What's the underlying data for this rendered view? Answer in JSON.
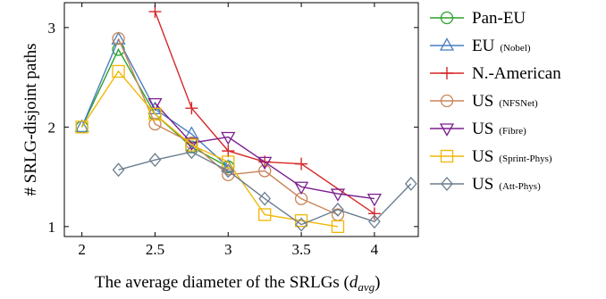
{
  "chart_data": {
    "type": "line",
    "title": "",
    "xlabel_text": "The average diameter of the SRLGs (",
    "xlabel_math": "d",
    "xlabel_sub": "avg",
    "xlabel_close": ")",
    "ylabel": "# SRLG-disjoint paths",
    "xlim": [
      1.88,
      4.3
    ],
    "ylim": [
      0.9,
      3.25
    ],
    "xticks": [
      2,
      2.5,
      3,
      3.5,
      4
    ],
    "xtick_labels": [
      "2",
      "2.5",
      "3",
      "3.5",
      "4"
    ],
    "yticks": [
      1,
      2,
      3
    ],
    "ytick_labels": [
      "1",
      "2",
      "3"
    ],
    "grid": false,
    "legend_position": "outside-right",
    "series": [
      {
        "name": "Pan-EU",
        "name_sub": "",
        "color": "#2ca02c",
        "marker": "circle",
        "points": [
          [
            2.0,
            2.0
          ],
          [
            2.25,
            2.78
          ],
          [
            2.5,
            2.13
          ],
          [
            2.75,
            1.8
          ],
          [
            3.0,
            1.6
          ]
        ]
      },
      {
        "name": "EU",
        "name_sub": "(Nobel)",
        "color": "#4a7fc0",
        "marker": "triangle-up",
        "points": [
          [
            2.0,
            2.0
          ],
          [
            2.25,
            2.88
          ],
          [
            2.5,
            2.18
          ],
          [
            2.75,
            1.93
          ],
          [
            3.0,
            1.6
          ]
        ]
      },
      {
        "name": "N.-American",
        "name_sub": "",
        "color": "#d62728",
        "marker": "plus",
        "points": [
          [
            2.5,
            3.16
          ],
          [
            2.75,
            2.19
          ],
          [
            3.0,
            1.76
          ],
          [
            3.25,
            1.65
          ],
          [
            3.5,
            1.63
          ],
          [
            4.0,
            1.13
          ]
        ]
      },
      {
        "name": "US",
        "name_sub": "(NFSNet)",
        "color": "#c8865a",
        "marker": "circle",
        "points": [
          [
            2.25,
            2.89
          ],
          [
            2.5,
            2.03
          ],
          [
            2.75,
            1.84
          ],
          [
            3.0,
            1.52
          ],
          [
            3.25,
            1.56
          ],
          [
            3.5,
            1.28
          ],
          [
            3.75,
            1.12
          ]
        ]
      },
      {
        "name": "US",
        "name_sub": "(Fibre)",
        "color": "#7b1f8e",
        "marker": "triangle-down",
        "points": [
          [
            2.5,
            2.24
          ],
          [
            2.75,
            1.84
          ],
          [
            3.0,
            1.9
          ],
          [
            3.25,
            1.65
          ],
          [
            3.5,
            1.4
          ],
          [
            3.75,
            1.33
          ],
          [
            4.0,
            1.28
          ]
        ]
      },
      {
        "name": "US",
        "name_sub": "(Sprint-Phys)",
        "color": "#f2b705",
        "marker": "square",
        "points": [
          [
            2.0,
            2.0
          ],
          [
            2.25,
            2.56
          ],
          [
            2.5,
            2.13
          ],
          [
            2.75,
            1.82
          ],
          [
            3.0,
            1.65
          ],
          [
            3.25,
            1.12
          ],
          [
            3.5,
            1.06
          ],
          [
            3.75,
            1.0
          ]
        ]
      },
      {
        "name": "US",
        "name_sub": "(Att-Phys)",
        "color": "#6b7d8f",
        "marker": "diamond",
        "points": [
          [
            2.25,
            1.57
          ],
          [
            2.5,
            1.67
          ],
          [
            2.75,
            1.75
          ],
          [
            3.0,
            1.56
          ],
          [
            3.25,
            1.28
          ],
          [
            3.5,
            1.02
          ],
          [
            3.75,
            1.17
          ],
          [
            4.0,
            1.05
          ],
          [
            4.25,
            1.43
          ]
        ]
      }
    ]
  }
}
